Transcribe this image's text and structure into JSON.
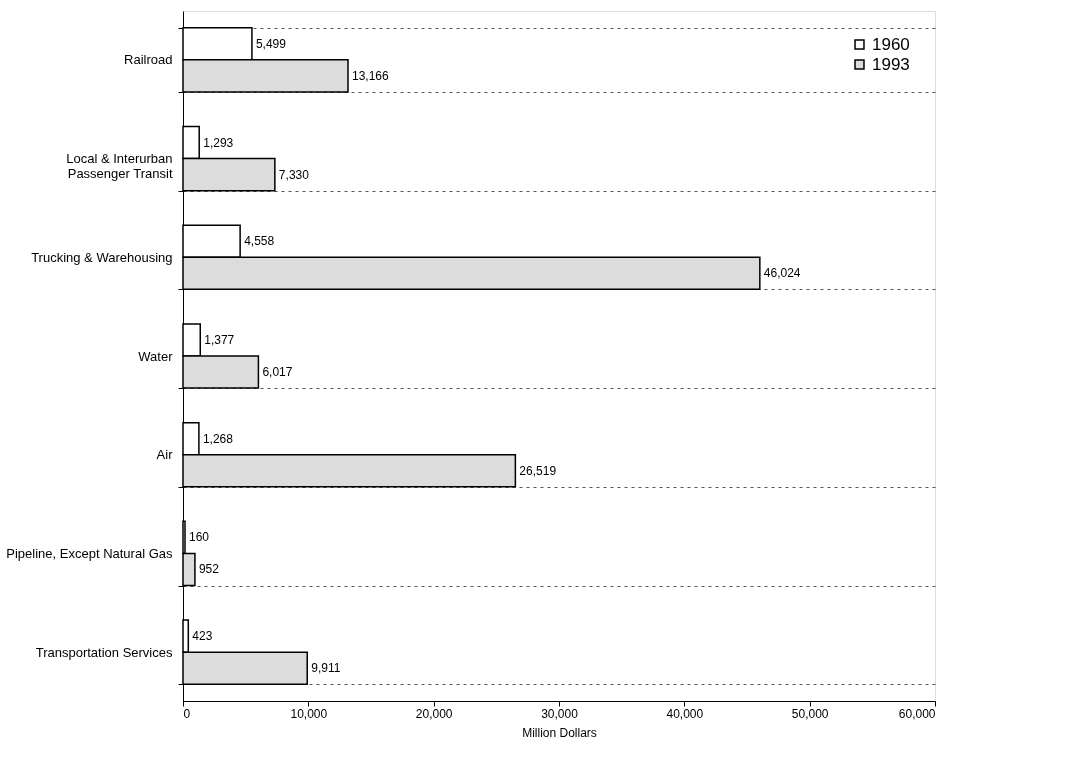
{
  "chart_data": {
    "type": "bar",
    "orientation": "horizontal",
    "xlabel": "Million Dollars",
    "categories": [
      "Railroad",
      "Local & Interurban\nPassenger Transit",
      "Trucking & Warehousing",
      "Water",
      "Air",
      "Pipeline, Except Natural Gas",
      "Transportation Services"
    ],
    "series": [
      {
        "name": "1960",
        "color": "#ffffff",
        "values": [
          5499,
          1293,
          4558,
          1377,
          1268,
          160,
          423
        ],
        "value_labels": [
          "5,499",
          "1,293",
          "4,558",
          "1,377",
          "1,268",
          "160",
          "423"
        ]
      },
      {
        "name": "1993",
        "color": "#dcdcdc",
        "values": [
          13166,
          7330,
          46024,
          6017,
          26519,
          952,
          9911
        ],
        "value_labels": [
          "13,166",
          "7,330",
          "46,024",
          "6,017",
          "26,519",
          "952",
          "9,911"
        ]
      }
    ],
    "xlim": [
      0,
      60000
    ],
    "xticks": [
      0,
      {
        "value": 10000,
        "label": "10,000"
      },
      {
        "value": 20000,
        "label": "20,000"
      },
      {
        "value": 30000,
        "label": "30,000"
      },
      {
        "value": 40000,
        "label": "40,000"
      },
      {
        "value": 50000,
        "label": "50,000"
      },
      {
        "value": 60000,
        "label": "60,000"
      }
    ],
    "legend": "top right",
    "grid": "y"
  }
}
